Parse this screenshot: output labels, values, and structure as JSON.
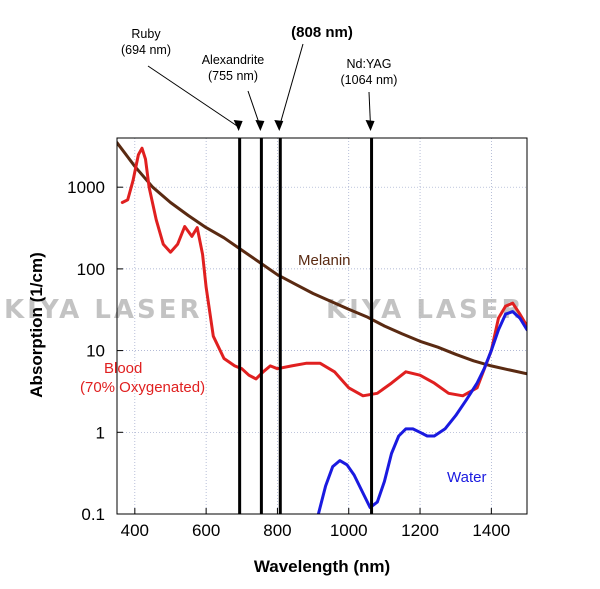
{
  "watermark": [
    "KIYA LASER",
    "KIYA LASER"
  ],
  "chart_data": {
    "type": "line",
    "xlabel": "Wavelength (nm)",
    "ylabel": "Absorption (1/cm)",
    "xlim": [
      350,
      1500
    ],
    "ylim": [
      0.1,
      4000
    ],
    "yscale": "log",
    "grid": true,
    "x_ticks": [
      400,
      600,
      800,
      1000,
      1200,
      1400
    ],
    "y_ticks": [
      0.1,
      1,
      10,
      100,
      1000
    ],
    "y_tick_labels": [
      "0.1",
      "1",
      "10",
      "100",
      "1000"
    ],
    "series": [
      {
        "name": "Melanin",
        "color": "#5a2a12",
        "points": [
          [
            350,
            3500
          ],
          [
            400,
            1800
          ],
          [
            450,
            1000
          ],
          [
            500,
            650
          ],
          [
            550,
            450
          ],
          [
            600,
            320
          ],
          [
            650,
            240
          ],
          [
            700,
            170
          ],
          [
            750,
            120
          ],
          [
            800,
            85
          ],
          [
            850,
            65
          ],
          [
            900,
            50
          ],
          [
            950,
            40
          ],
          [
            1000,
            32
          ],
          [
            1050,
            26
          ],
          [
            1100,
            20
          ],
          [
            1150,
            16
          ],
          [
            1200,
            13
          ],
          [
            1250,
            11
          ],
          [
            1300,
            9
          ],
          [
            1350,
            7.5
          ],
          [
            1400,
            6.5
          ],
          [
            1450,
            5.8
          ],
          [
            1500,
            5.2
          ]
        ]
      },
      {
        "name": "Blood",
        "sublabel": "(70% Oxygenated)",
        "color": "#e02020",
        "points": [
          [
            365,
            650
          ],
          [
            380,
            700
          ],
          [
            395,
            1200
          ],
          [
            410,
            2500
          ],
          [
            420,
            3000
          ],
          [
            430,
            2200
          ],
          [
            440,
            1000
          ],
          [
            460,
            400
          ],
          [
            480,
            200
          ],
          [
            500,
            160
          ],
          [
            520,
            200
          ],
          [
            540,
            330
          ],
          [
            560,
            250
          ],
          [
            575,
            320
          ],
          [
            590,
            150
          ],
          [
            600,
            60
          ],
          [
            620,
            15
          ],
          [
            650,
            8
          ],
          [
            680,
            6.5
          ],
          [
            700,
            6
          ],
          [
            720,
            5
          ],
          [
            740,
            4.5
          ],
          [
            760,
            5.5
          ],
          [
            780,
            6.5
          ],
          [
            800,
            6
          ],
          [
            840,
            6.5
          ],
          [
            880,
            7
          ],
          [
            920,
            7
          ],
          [
            960,
            5.5
          ],
          [
            1000,
            3.5
          ],
          [
            1040,
            2.8
          ],
          [
            1080,
            3
          ],
          [
            1120,
            4
          ],
          [
            1160,
            5.5
          ],
          [
            1200,
            5
          ],
          [
            1240,
            4
          ],
          [
            1280,
            3
          ],
          [
            1320,
            2.8
          ],
          [
            1360,
            3.5
          ],
          [
            1400,
            10
          ],
          [
            1420,
            25
          ],
          [
            1440,
            35
          ],
          [
            1460,
            38
          ],
          [
            1480,
            28
          ],
          [
            1500,
            20
          ]
        ]
      },
      {
        "name": "Water",
        "color": "#1a1ae0",
        "points": [
          [
            915,
            0.1
          ],
          [
            935,
            0.22
          ],
          [
            955,
            0.38
          ],
          [
            975,
            0.45
          ],
          [
            995,
            0.4
          ],
          [
            1015,
            0.3
          ],
          [
            1040,
            0.18
          ],
          [
            1060,
            0.12
          ],
          [
            1080,
            0.14
          ],
          [
            1100,
            0.25
          ],
          [
            1120,
            0.55
          ],
          [
            1140,
            0.9
          ],
          [
            1160,
            1.1
          ],
          [
            1180,
            1.1
          ],
          [
            1200,
            1
          ],
          [
            1220,
            0.9
          ],
          [
            1240,
            0.9
          ],
          [
            1270,
            1.1
          ],
          [
            1300,
            1.6
          ],
          [
            1330,
            2.5
          ],
          [
            1360,
            4
          ],
          [
            1380,
            6
          ],
          [
            1400,
            10
          ],
          [
            1420,
            18
          ],
          [
            1440,
            28
          ],
          [
            1460,
            30
          ],
          [
            1480,
            25
          ],
          [
            1500,
            18
          ]
        ]
      }
    ],
    "vertical_lines": [
      {
        "x": 694,
        "label": [
          "Ruby",
          "(694 nm)"
        ]
      },
      {
        "x": 755,
        "label": [
          "Alexandrite",
          "(755 nm)"
        ]
      },
      {
        "x": 808,
        "label": [
          "(808 nm)"
        ]
      },
      {
        "x": 1064,
        "label": [
          "Nd:YAG",
          "(1064 nm)"
        ]
      }
    ]
  }
}
